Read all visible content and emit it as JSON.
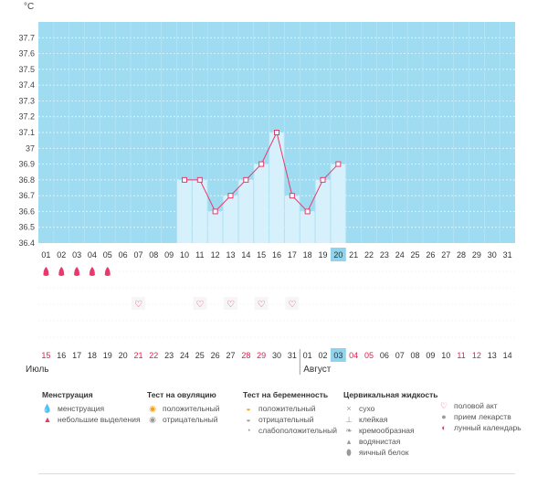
{
  "chart_data": {
    "type": "bar",
    "unit_label": "°C",
    "ylim": [
      36.4,
      37.8
    ],
    "yticks": [
      "36.4",
      "36.5",
      "36.6",
      "36.7",
      "36.8",
      "36.9",
      "37",
      "37.1",
      "37.2",
      "37.3",
      "37.4",
      "37.5",
      "37.6",
      "37.7"
    ],
    "days": [
      "01",
      "02",
      "03",
      "04",
      "05",
      "06",
      "07",
      "08",
      "09",
      "10",
      "11",
      "12",
      "13",
      "14",
      "15",
      "16",
      "17",
      "18",
      "19",
      "20",
      "21",
      "22",
      "23",
      "24",
      "25",
      "26",
      "27",
      "28",
      "29",
      "30",
      "31"
    ],
    "highlighted_day": "20",
    "temperatures": [
      null,
      null,
      null,
      null,
      null,
      null,
      null,
      null,
      null,
      36.8,
      36.8,
      36.6,
      36.7,
      36.8,
      36.9,
      37.1,
      36.7,
      36.6,
      36.8,
      36.9,
      null,
      null,
      null,
      null,
      null,
      null,
      null,
      null,
      null,
      null,
      null
    ],
    "menstruation_days": [
      "01",
      "02",
      "03",
      "04",
      "05"
    ],
    "intercourse_days": [
      "07",
      "11",
      "13",
      "15",
      "17"
    ],
    "cycle_days": [
      "15",
      "16",
      "17",
      "18",
      "19",
      "20",
      "21",
      "22",
      "23",
      "24",
      "25",
      "26",
      "27",
      "28",
      "29",
      "30",
      "31",
      "01",
      "02",
      "03",
      "04",
      "05",
      "06",
      "07",
      "08",
      "09",
      "10",
      "11",
      "12",
      "13",
      "14"
    ],
    "cycle_red_days": [
      "15",
      "21",
      "22",
      "28",
      "29",
      "04",
      "05",
      "11",
      "12"
    ],
    "cycle_highlight_index": 19,
    "months": [
      "Июль",
      "Август"
    ]
  },
  "colors": {
    "chart_fill": "#9fdcf2",
    "bar_fill": "#d6f1fc",
    "line": "#e8396b",
    "highlight": "#8fd4ec",
    "red_text": "#d9224a"
  },
  "legend": {
    "menstruation": {
      "title": "Менструация",
      "items": [
        {
          "icon": "blood-drop-icon",
          "label": "менструация"
        },
        {
          "icon": "small-drop-icon",
          "label": "небольшие выделения"
        }
      ]
    },
    "ovulation": {
      "title": "Тест на овуляцию",
      "items": [
        {
          "icon": "positive-test-icon",
          "label": "положительный"
        },
        {
          "icon": "negative-test-icon",
          "label": "отрицательный"
        }
      ]
    },
    "pregnancy": {
      "title": "Тест на беременность",
      "items": [
        {
          "icon": "positive-test-icon",
          "label": "положительный"
        },
        {
          "icon": "negative-test-icon",
          "label": "отрицательный"
        },
        {
          "icon": "weak-positive-test-icon",
          "label": "слабоположительный"
        }
      ]
    },
    "cervical": {
      "title": "Цервикальная жидкость",
      "items": [
        {
          "icon": "dry-icon",
          "label": "сухо"
        },
        {
          "icon": "sticky-icon",
          "label": "клейкая"
        },
        {
          "icon": "creamy-icon",
          "label": "кремообразная"
        },
        {
          "icon": "watery-icon",
          "label": "водянистая"
        },
        {
          "icon": "egg-white-icon",
          "label": "яичный белок"
        }
      ]
    },
    "other": {
      "items": [
        {
          "icon": "heart-icon",
          "label": "половой акт"
        },
        {
          "icon": "pill-icon",
          "label": "прием лекарств"
        },
        {
          "icon": "moon-icon",
          "label": "лунный календарь"
        }
      ]
    }
  }
}
